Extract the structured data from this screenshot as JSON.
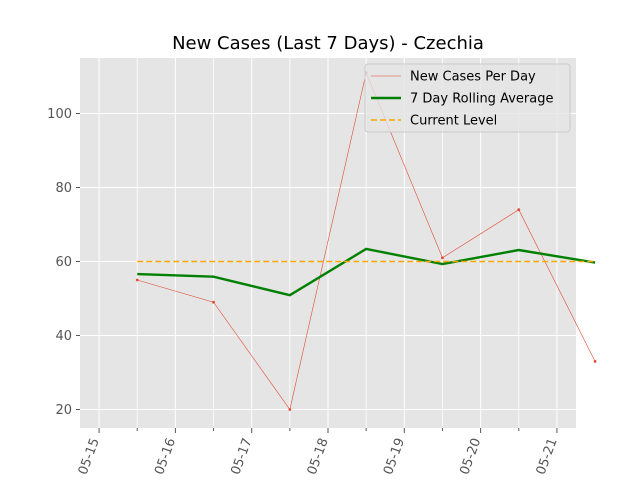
{
  "chart_data": {
    "type": "line",
    "title": "New Cases (Last 7 Days) - Czechia",
    "xlabel": "",
    "ylabel": "",
    "x_tick_labels": [
      "05-15",
      "05-16",
      "05-17",
      "05-18",
      "05-19",
      "05-20",
      "05-21"
    ],
    "x_dates": [
      "05-15 12:00",
      "05-16 12:00",
      "05-17 12:00",
      "05-18 12:00",
      "05-19 12:00",
      "05-20 12:00",
      "05-21 12:00"
    ],
    "ylim": [
      15,
      115
    ],
    "y_ticks": [
      20,
      40,
      60,
      80,
      100
    ],
    "grid": true,
    "legend_position": "top-right",
    "series": [
      {
        "name": "New Cases Per Day",
        "values": [
          55,
          49,
          20,
          111,
          61,
          74,
          33
        ],
        "color": "#e24a33",
        "style": "thin-solid-markers"
      },
      {
        "name": "7 Day Rolling Average",
        "values": [
          56.6,
          55.9,
          50.9,
          63.4,
          59.3,
          63.1,
          59.7
        ],
        "color": "#008000",
        "style": "thick-solid"
      },
      {
        "name": "Current Level",
        "values": [
          60,
          60,
          60,
          60,
          60,
          60,
          60
        ],
        "color": "#ffa500",
        "style": "dashed"
      }
    ]
  }
}
